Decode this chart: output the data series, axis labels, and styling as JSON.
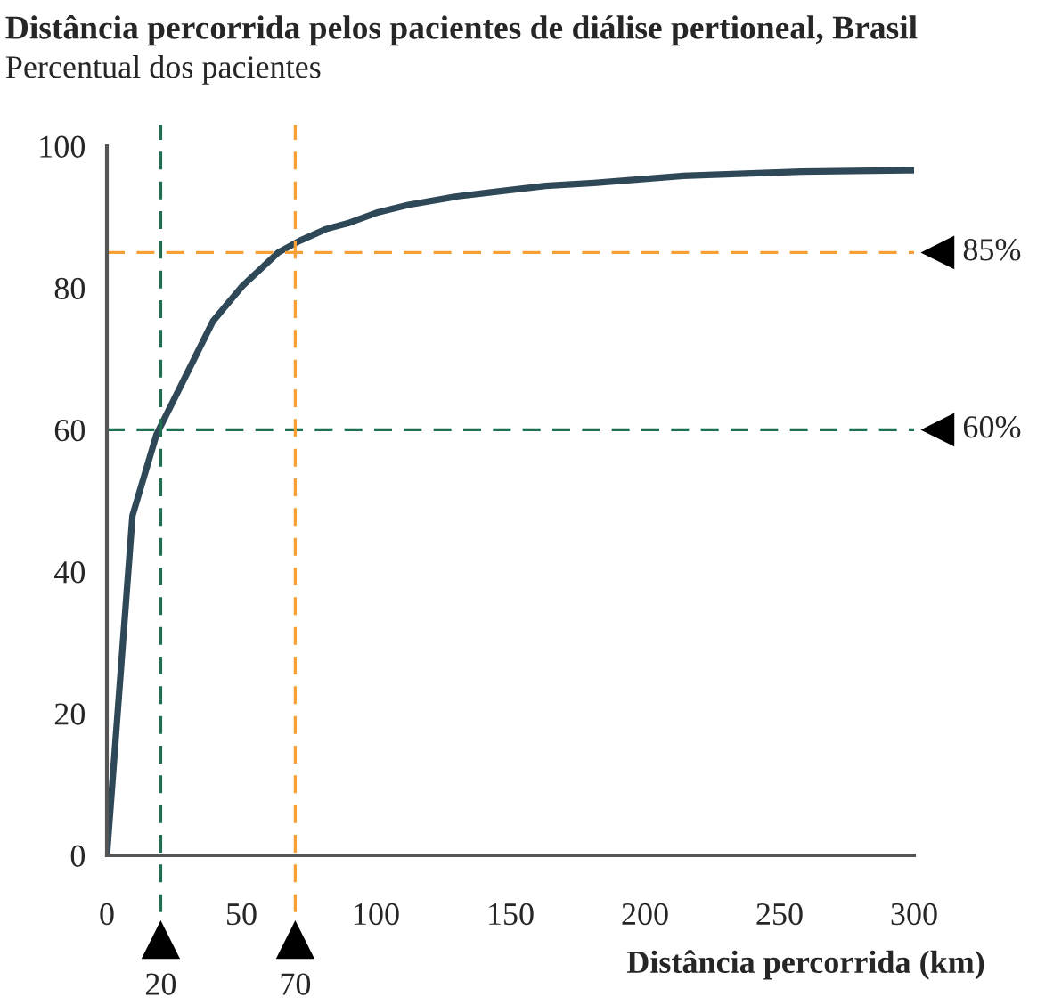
{
  "chart_data": {
    "type": "line",
    "title": "Distância percorrida pelos pacientes de diálise pertioneal, Brasil",
    "subtitle": "Percentual dos pacientes",
    "xlabel": "Distância percorrida (km)",
    "x": [
      0,
      9.5,
      18.4,
      27.2,
      39.4,
      50.4,
      63.7,
      71.4,
      81.4,
      90.2,
      100.2,
      112,
      130,
      145.5,
      163,
      181,
      214,
      258,
      300
    ],
    "series": [
      {
        "color": "#2f4858",
        "values": [
          0,
          47.9,
          59.3,
          66.0,
          75.3,
          80.3,
          85.0,
          86.6,
          88.3,
          89.2,
          90.6,
          91.7,
          92.9,
          93.6,
          94.4,
          94.8,
          95.8,
          96.4,
          96.6
        ]
      }
    ],
    "xlim": [
      0,
      300
    ],
    "xticks": [
      0,
      50,
      100,
      150,
      200,
      250,
      300
    ],
    "ylim": [
      0,
      100
    ],
    "yticks": [
      0,
      20,
      40,
      60,
      80,
      100
    ],
    "ref_lines": [
      {
        "axis": "y",
        "value": 85,
        "label": "85%",
        "color": "#f7a035",
        "line_style": "dashed"
      },
      {
        "axis": "y",
        "value": 60,
        "label": "60%",
        "color": "#1e7050",
        "line_style": "dashed"
      },
      {
        "axis": "x",
        "value": 20,
        "label": "20",
        "color": "#1e7050",
        "line_style": "dashed"
      },
      {
        "axis": "x",
        "value": 70,
        "label": "70",
        "color": "#f7a035",
        "line_style": "dashed"
      }
    ],
    "grid": false,
    "legend": false,
    "marker": "none",
    "line_style": "solid"
  }
}
